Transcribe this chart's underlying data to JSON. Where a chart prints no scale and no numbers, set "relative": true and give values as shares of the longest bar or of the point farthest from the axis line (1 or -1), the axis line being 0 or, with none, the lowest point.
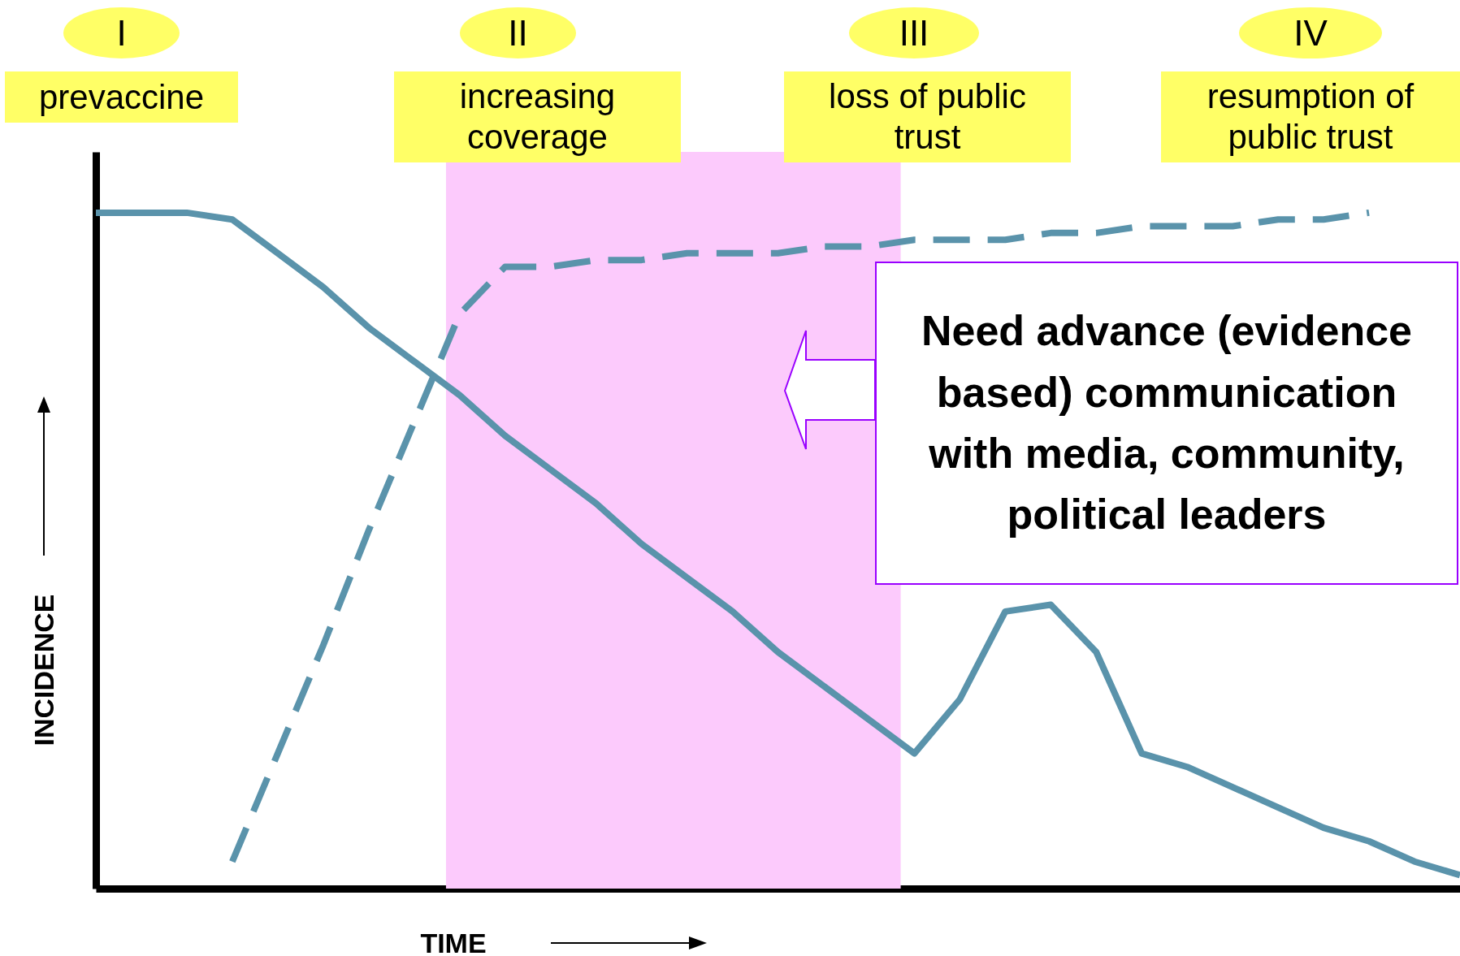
{
  "chart_data": {
    "type": "line",
    "relative": true,
    "xlabel": "TIME",
    "ylabel": "INCIDENCE",
    "categories": [
      null,
      null,
      null,
      null,
      null,
      null,
      null,
      null,
      null,
      null,
      null,
      null,
      null,
      null,
      null,
      null,
      null,
      null,
      null,
      null,
      null,
      null,
      null,
      null,
      null,
      null,
      null,
      null,
      null,
      null,
      null
    ],
    "series": [
      {
        "color": "#5a93ab",
        "line_style": "solid",
        "values": [
          1.0,
          1.0,
          1.0,
          0.99,
          0.94,
          0.89,
          0.83,
          0.78,
          0.73,
          0.67,
          0.62,
          0.57,
          0.51,
          0.46,
          0.41,
          0.35,
          0.3,
          0.25,
          0.2,
          0.28,
          0.41,
          0.42,
          0.35,
          0.2,
          0.18,
          0.15,
          0.12,
          0.09,
          0.07,
          0.04,
          0.02
        ]
      },
      {
        "color": "#5a93ab",
        "line_style": "dashed",
        "values": [
          null,
          null,
          null,
          0.04,
          0.2,
          0.36,
          0.53,
          0.69,
          0.85,
          0.92,
          0.92,
          0.93,
          0.93,
          0.94,
          0.94,
          0.94,
          0.95,
          0.95,
          0.96,
          0.96,
          0.96,
          0.97,
          0.97,
          0.98,
          0.98,
          0.98,
          0.99,
          0.99,
          1.0,
          null,
          null
        ]
      }
    ],
    "grid": false,
    "tick_labels": false,
    "annotations": [
      "I",
      "prevaccine",
      "II",
      "increasing coverage",
      "III",
      "loss of public trust",
      "IV",
      "resumption of public trust",
      "Need advance (evidence based) communication with media, community, political leaders"
    ]
  }
}
